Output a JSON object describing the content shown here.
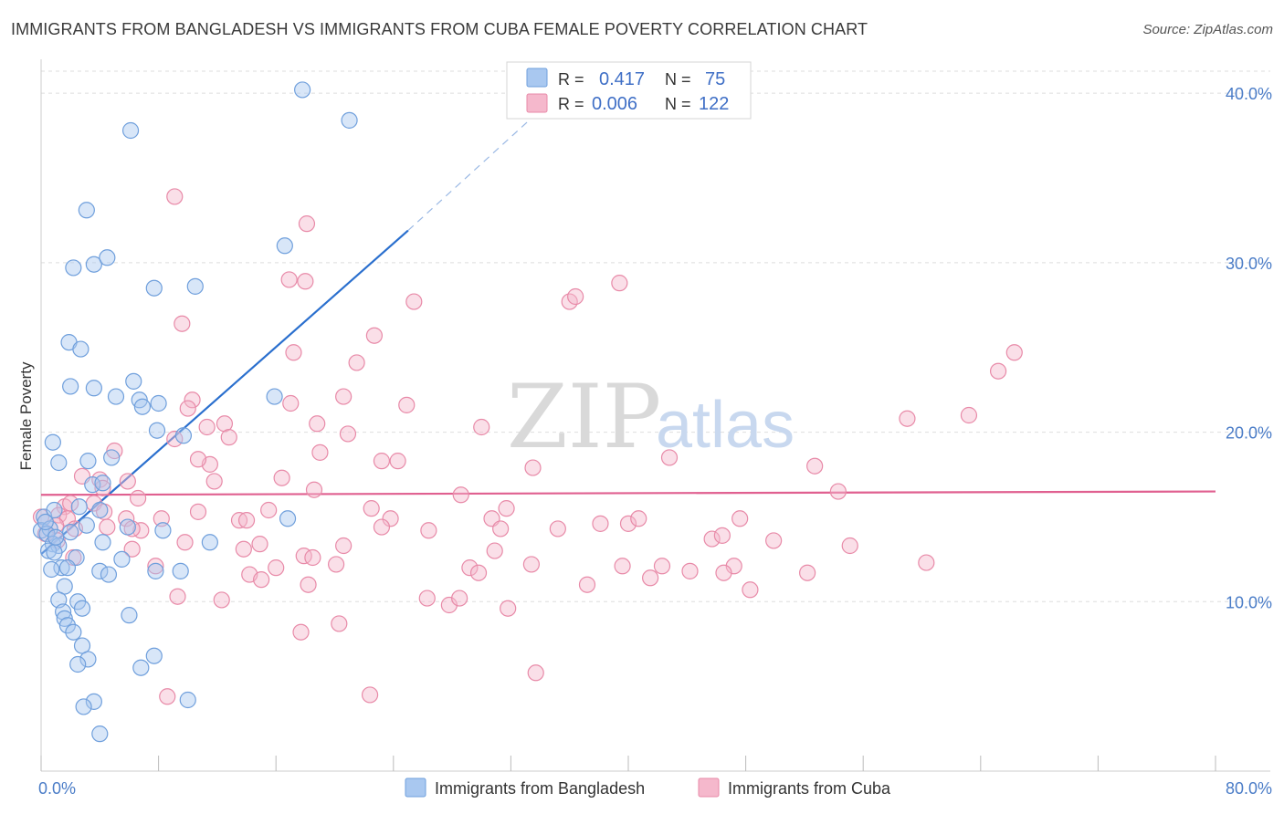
{
  "title": "IMMIGRANTS FROM BANGLADESH VS IMMIGRANTS FROM CUBA FEMALE POVERTY CORRELATION CHART",
  "source": "Source: ZipAtlas.com",
  "watermark": {
    "zip": "ZIP",
    "atlas": "atlas"
  },
  "colors": {
    "bangladesh_fill": "#a9c8f0",
    "bangladesh_stroke": "#6f9fdc",
    "bangladesh_line": "#2a6fce",
    "cuba_fill": "#f5b8cc",
    "cuba_stroke": "#e88aa8",
    "cuba_line": "#e06090",
    "tick_text": "#4a7cc7",
    "grid": "#dddddd"
  },
  "legend": {
    "rows": [
      {
        "r_label": "R =",
        "r_value": "0.417",
        "n_label": "N =",
        "n_value": "75",
        "color": "bangladesh"
      },
      {
        "r_label": "R =",
        "r_value": "0.006",
        "n_label": "N =",
        "n_value": "122",
        "color": "cuba"
      }
    ]
  },
  "bottom_legend": [
    "Immigrants from Bangladesh",
    "Immigrants from Cuba"
  ],
  "chart_data": {
    "type": "scatter",
    "xlabel": "",
    "ylabel": "Female Poverty",
    "xlim": [
      0,
      80
    ],
    "ylim": [
      0,
      42
    ],
    "x_tick_labels": [
      {
        "value": 0,
        "label": "0.0%"
      },
      {
        "value": 80,
        "label": "80.0%"
      }
    ],
    "x_minor_ticks": [
      0,
      8,
      16,
      24,
      32,
      40,
      48,
      56,
      64,
      72,
      80
    ],
    "y_ticks": [
      {
        "value": 10,
        "label": "10.0%"
      },
      {
        "value": 20,
        "label": "20.0%"
      },
      {
        "value": 30,
        "label": "30.0%"
      },
      {
        "value": 40,
        "label": "40.0%"
      }
    ],
    "grid": true,
    "legend_position": "top-center",
    "series": [
      {
        "name": "Immigrants from Bangladesh",
        "R": 0.417,
        "N": 75,
        "trend": {
          "x0": 0,
          "y0": 12.8,
          "x1": 25,
          "y1": 31.9,
          "dash_to_x": 33.5,
          "dash_to_y": 38.6
        },
        "points": [
          [
            17.8,
            40.2
          ],
          [
            21.0,
            38.4
          ],
          [
            6.1,
            37.8
          ],
          [
            3.1,
            33.1
          ],
          [
            3.6,
            29.9
          ],
          [
            2.2,
            29.7
          ],
          [
            4.5,
            30.3
          ],
          [
            16.6,
            31.0
          ],
          [
            7.7,
            28.5
          ],
          [
            10.5,
            28.6
          ],
          [
            1.9,
            25.3
          ],
          [
            2.7,
            24.9
          ],
          [
            6.3,
            23.0
          ],
          [
            2.0,
            22.7
          ],
          [
            3.6,
            22.6
          ],
          [
            5.1,
            22.1
          ],
          [
            6.7,
            21.9
          ],
          [
            8.0,
            21.7
          ],
          [
            6.9,
            21.5
          ],
          [
            15.9,
            22.1
          ],
          [
            0.8,
            19.4
          ],
          [
            7.9,
            20.1
          ],
          [
            9.7,
            19.8
          ],
          [
            1.2,
            18.2
          ],
          [
            3.2,
            18.3
          ],
          [
            4.8,
            18.5
          ],
          [
            3.5,
            16.9
          ],
          [
            4.2,
            17.0
          ],
          [
            0.2,
            15.0
          ],
          [
            0.9,
            15.4
          ],
          [
            2.6,
            15.6
          ],
          [
            4.0,
            15.4
          ],
          [
            0.0,
            14.2
          ],
          [
            0.6,
            14.3
          ],
          [
            0.4,
            14.0
          ],
          [
            0.8,
            13.4
          ],
          [
            1.2,
            13.3
          ],
          [
            2.0,
            14.1
          ],
          [
            3.1,
            14.5
          ],
          [
            5.9,
            14.4
          ],
          [
            8.3,
            14.2
          ],
          [
            16.8,
            14.9
          ],
          [
            4.2,
            13.5
          ],
          [
            0.5,
            13.0
          ],
          [
            0.9,
            12.9
          ],
          [
            2.4,
            12.6
          ],
          [
            5.5,
            12.5
          ],
          [
            1.4,
            12.0
          ],
          [
            1.8,
            12.0
          ],
          [
            0.7,
            11.9
          ],
          [
            4.0,
            11.8
          ],
          [
            4.6,
            11.6
          ],
          [
            7.8,
            11.8
          ],
          [
            9.5,
            11.8
          ],
          [
            11.5,
            13.5
          ],
          [
            1.6,
            10.9
          ],
          [
            1.2,
            10.1
          ],
          [
            2.5,
            10.0
          ],
          [
            2.8,
            9.6
          ],
          [
            1.5,
            9.4
          ],
          [
            1.6,
            9.0
          ],
          [
            6.0,
            9.2
          ],
          [
            1.8,
            8.6
          ],
          [
            2.2,
            8.2
          ],
          [
            2.8,
            7.4
          ],
          [
            3.2,
            6.6
          ],
          [
            2.5,
            6.3
          ],
          [
            7.7,
            6.8
          ],
          [
            6.8,
            6.1
          ],
          [
            3.6,
            4.1
          ],
          [
            2.9,
            3.8
          ],
          [
            10.0,
            4.2
          ],
          [
            4.0,
            2.2
          ],
          [
            0.3,
            14.7
          ],
          [
            1.0,
            13.8
          ]
        ]
      },
      {
        "name": "Immigrants from Cuba",
        "R": 0.006,
        "N": 122,
        "trend": {
          "x0": 0,
          "y0": 16.3,
          "x1": 80,
          "y1": 16.5
        },
        "points": [
          [
            9.1,
            33.9
          ],
          [
            18.1,
            32.3
          ],
          [
            16.9,
            29.0
          ],
          [
            18.0,
            28.9
          ],
          [
            25.4,
            27.7
          ],
          [
            36.0,
            27.7
          ],
          [
            36.4,
            28.0
          ],
          [
            39.4,
            28.8
          ],
          [
            9.6,
            26.4
          ],
          [
            22.7,
            25.7
          ],
          [
            17.2,
            24.7
          ],
          [
            21.5,
            24.1
          ],
          [
            66.3,
            24.7
          ],
          [
            65.2,
            23.6
          ],
          [
            10.3,
            21.9
          ],
          [
            17.0,
            21.7
          ],
          [
            20.6,
            22.1
          ],
          [
            24.9,
            21.6
          ],
          [
            10.0,
            21.4
          ],
          [
            11.3,
            20.3
          ],
          [
            12.5,
            20.5
          ],
          [
            18.8,
            20.5
          ],
          [
            20.9,
            19.9
          ],
          [
            12.8,
            19.7
          ],
          [
            9.1,
            19.6
          ],
          [
            30.0,
            20.3
          ],
          [
            59.0,
            20.8
          ],
          [
            63.2,
            21.0
          ],
          [
            5.0,
            18.9
          ],
          [
            11.5,
            18.1
          ],
          [
            10.7,
            18.4
          ],
          [
            19.0,
            18.8
          ],
          [
            23.2,
            18.3
          ],
          [
            24.3,
            18.3
          ],
          [
            33.5,
            17.9
          ],
          [
            42.8,
            18.5
          ],
          [
            52.7,
            18.0
          ],
          [
            2.8,
            17.4
          ],
          [
            4.0,
            17.2
          ],
          [
            5.9,
            17.1
          ],
          [
            11.8,
            17.1
          ],
          [
            16.4,
            17.3
          ],
          [
            18.6,
            16.6
          ],
          [
            4.2,
            16.7
          ],
          [
            28.6,
            16.3
          ],
          [
            6.6,
            16.1
          ],
          [
            3.6,
            15.8
          ],
          [
            54.3,
            16.5
          ],
          [
            1.6,
            15.6
          ],
          [
            2.0,
            15.8
          ],
          [
            4.3,
            15.3
          ],
          [
            10.7,
            15.3
          ],
          [
            15.5,
            15.4
          ],
          [
            22.5,
            15.5
          ],
          [
            31.7,
            15.5
          ],
          [
            0.0,
            15.0
          ],
          [
            1.2,
            15.1
          ],
          [
            1.8,
            14.9
          ],
          [
            5.8,
            14.9
          ],
          [
            8.2,
            14.9
          ],
          [
            13.5,
            14.8
          ],
          [
            14.0,
            14.8
          ],
          [
            23.8,
            14.9
          ],
          [
            26.4,
            14.2
          ],
          [
            30.7,
            14.9
          ],
          [
            38.1,
            14.6
          ],
          [
            40.0,
            14.6
          ],
          [
            40.7,
            14.9
          ],
          [
            47.6,
            14.9
          ],
          [
            1.0,
            14.5
          ],
          [
            2.3,
            14.3
          ],
          [
            6.8,
            14.2
          ],
          [
            23.2,
            14.4
          ],
          [
            31.3,
            14.3
          ],
          [
            0.3,
            14.0
          ],
          [
            1.1,
            13.6
          ],
          [
            4.5,
            14.4
          ],
          [
            6.2,
            14.3
          ],
          [
            9.8,
            13.5
          ],
          [
            13.8,
            13.1
          ],
          [
            14.9,
            13.4
          ],
          [
            20.6,
            13.3
          ],
          [
            35.2,
            14.3
          ],
          [
            45.7,
            13.7
          ],
          [
            46.4,
            13.9
          ],
          [
            49.9,
            13.6
          ],
          [
            55.1,
            13.3
          ],
          [
            6.2,
            13.1
          ],
          [
            17.9,
            12.7
          ],
          [
            18.5,
            12.6
          ],
          [
            30.9,
            13.0
          ],
          [
            16.0,
            12.0
          ],
          [
            20.1,
            12.2
          ],
          [
            29.2,
            12.0
          ],
          [
            33.4,
            12.2
          ],
          [
            39.6,
            12.1
          ],
          [
            42.3,
            12.1
          ],
          [
            44.2,
            11.8
          ],
          [
            47.2,
            12.1
          ],
          [
            52.2,
            11.7
          ],
          [
            60.3,
            12.3
          ],
          [
            2.2,
            12.6
          ],
          [
            7.8,
            12.1
          ],
          [
            14.2,
            11.6
          ],
          [
            15.0,
            11.3
          ],
          [
            18.2,
            11.0
          ],
          [
            29.8,
            11.7
          ],
          [
            37.2,
            11.0
          ],
          [
            41.5,
            11.4
          ],
          [
            46.5,
            11.7
          ],
          [
            48.3,
            10.7
          ],
          [
            9.3,
            10.3
          ],
          [
            12.3,
            10.1
          ],
          [
            26.3,
            10.2
          ],
          [
            27.8,
            9.8
          ],
          [
            28.5,
            10.2
          ],
          [
            31.8,
            9.6
          ],
          [
            20.3,
            8.7
          ],
          [
            17.7,
            8.2
          ],
          [
            33.7,
            5.8
          ],
          [
            8.6,
            4.4
          ],
          [
            22.4,
            4.5
          ]
        ]
      }
    ]
  }
}
